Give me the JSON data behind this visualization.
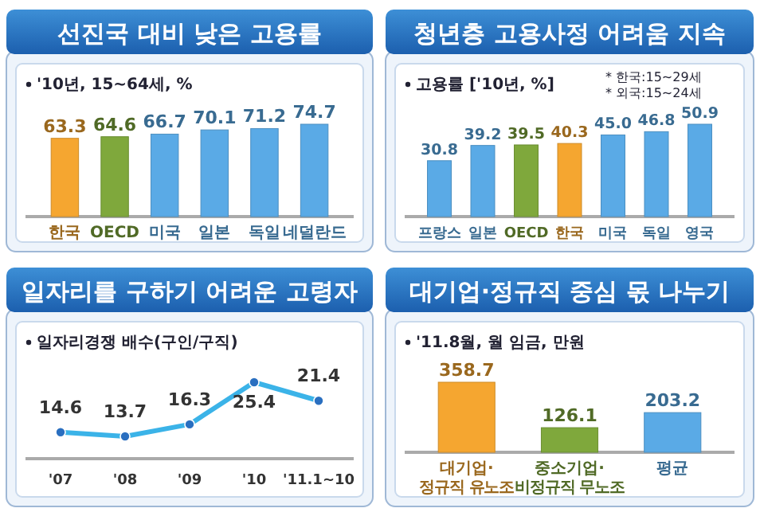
{
  "chart_data": [
    {
      "type": "bar",
      "title": "선진국 대비 낮은 고용률",
      "subtitle": "'10년, 15~64세, %",
      "categories": [
        "한국",
        "OECD",
        "미국",
        "일본",
        "독일",
        "네덜란드"
      ],
      "values": [
        63.3,
        64.6,
        66.7,
        70.1,
        71.2,
        74.7
      ],
      "colors": [
        "#f5a630",
        "#7fa83c",
        "#5aaae6",
        "#5aaae6",
        "#5aaae6",
        "#5aaae6"
      ],
      "data_labels": true
    },
    {
      "type": "bar",
      "title": "청년층 고용사정 어려움 지속",
      "subtitle": "고용률 ['10년, %]",
      "annotations": [
        "* 한국:15~29세",
        "* 외국:15~24세"
      ],
      "categories": [
        "프랑스",
        "일본",
        "OECD",
        "한국",
        "미국",
        "독일",
        "영국"
      ],
      "values": [
        30.8,
        39.2,
        39.5,
        40.3,
        45.0,
        46.8,
        50.9
      ],
      "value_labels": [
        "30.8",
        "39.2",
        "39.5",
        "40.3",
        "45.0",
        "46.8",
        "50.9"
      ],
      "colors": [
        "#5aaae6",
        "#5aaae6",
        "#7fa83c",
        "#f5a630",
        "#5aaae6",
        "#5aaae6",
        "#5aaae6"
      ]
    },
    {
      "type": "line",
      "title": "일자리를 구하기 어려운 고령자",
      "subtitle": "일자리경쟁 배수(구인/구직)",
      "categories": [
        "'07",
        "'08",
        "'09",
        "'10",
        "'11.1~10"
      ],
      "values": [
        14.6,
        13.7,
        16.3,
        25.4,
        21.4
      ],
      "color": "#3bb3e8",
      "marker": "circle",
      "data_labels": true
    },
    {
      "type": "bar",
      "title": "대기업·정규직 중심 몫 나누기",
      "subtitle": "'11.8월, 월 임금, 만원",
      "categories": [
        "대기업·정규직 유노조",
        "중소기업·비정규직 무노조",
        "평균"
      ],
      "values": [
        358.7,
        126.1,
        203.2
      ],
      "colors": [
        "#f5a630",
        "#7fa83c",
        "#5aaae6"
      ],
      "data_labels": true
    }
  ]
}
